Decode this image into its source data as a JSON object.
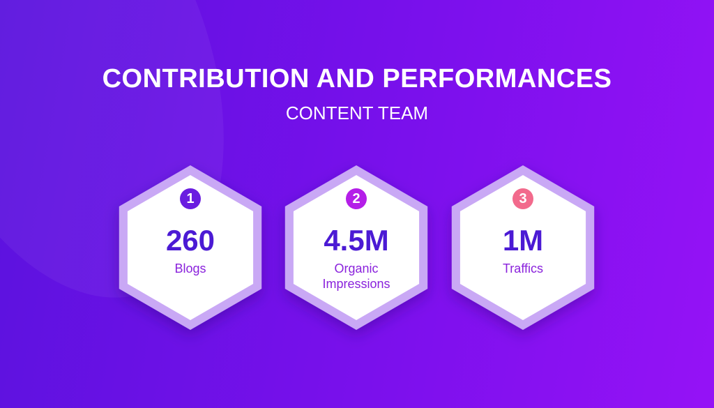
{
  "header": {
    "title": "CONTRIBUTION AND PERFORMANCES",
    "subtitle": "CONTENT TEAM"
  },
  "items": [
    {
      "number": "1",
      "value": "260",
      "label": "Blogs",
      "color": "#6a1de0"
    },
    {
      "number": "2",
      "value": "4.5M",
      "label": "Organic Impressions",
      "color": "#b41ee8"
    },
    {
      "number": "3",
      "value": "1M",
      "label": "Traffics",
      "color": "#f26a8c"
    }
  ]
}
